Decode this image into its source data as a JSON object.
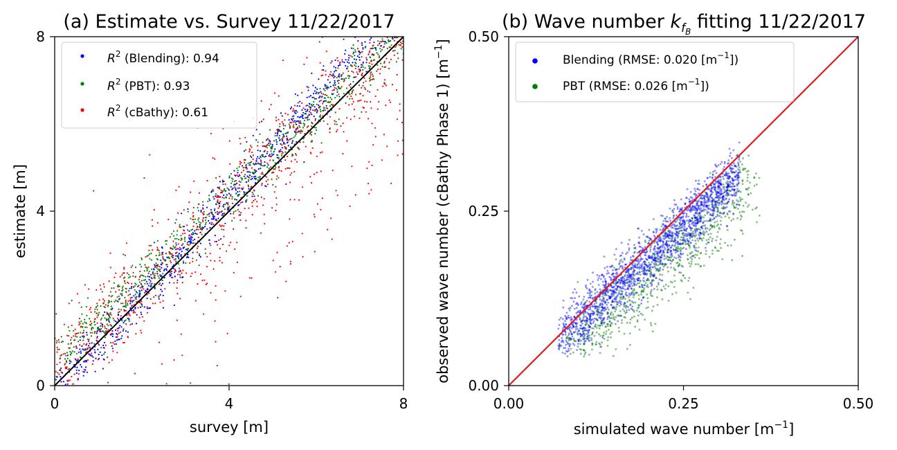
{
  "chart_data": [
    {
      "type": "scatter",
      "title_main": "(a) Estimate vs. Survey 11/22/2017",
      "xlabel": "survey [m]",
      "ylabel": "estimate [m]",
      "xlim": [
        0,
        8
      ],
      "ylim": [
        0,
        8
      ],
      "xticks": [
        "0",
        "4",
        "8"
      ],
      "yticks": [
        "0",
        "4",
        "8"
      ],
      "reference_line": {
        "from": [
          0,
          0
        ],
        "to": [
          8,
          8
        ],
        "color": "#000000"
      },
      "legend_position": "top-left",
      "series": [
        {
          "name": "Blending",
          "label_math": "R",
          "label_sup": "2",
          "label_rest": " (Blending):  0.94",
          "r2": 0.94,
          "color": "#0000ff",
          "slope": 1.12,
          "offset": -0.15,
          "spread": 0.28
        },
        {
          "name": "PBT",
          "label_math": "R",
          "label_sup": "2",
          "label_rest": " (PBT):  0.93",
          "r2": 0.93,
          "color": "#008000",
          "slope": 0.95,
          "offset": 0.55,
          "spread": 0.3
        },
        {
          "name": "cBathy",
          "label_math": "R",
          "label_sup": "2",
          "label_rest": " (cBathy):  0.61",
          "r2": 0.61,
          "color": "#ff0000",
          "slope": 0.97,
          "offset": 0.35,
          "spread": 0.55
        }
      ]
    },
    {
      "type": "scatter",
      "title_main": "(b) Wave number ",
      "title_k": "k",
      "title_sub": "f",
      "title_subsub": "B",
      "title_rest": " fitting 11/22/2017",
      "xlabel_main": "simulated wave number [m",
      "xlabel_sup": "−1",
      "xlabel_end": "]",
      "ylabel_main": "observed wave number (cBathy Phase 1) [m",
      "ylabel_sup": "−1",
      "ylabel_end": "]",
      "xlim": [
        0.0,
        0.5
      ],
      "ylim": [
        0.0,
        0.5
      ],
      "xticks": [
        "0.00",
        "0.25",
        "0.50"
      ],
      "yticks": [
        "0.00",
        "0.25",
        "0.50"
      ],
      "reference_line": {
        "from": [
          0,
          0
        ],
        "to": [
          0.5,
          0.5
        ],
        "color": "#e31a1c"
      },
      "legend_position": "top-left",
      "series": [
        {
          "name": "Blending",
          "label_main": "Blending (RMSE:   0.020 [m",
          "label_sup": "−1",
          "label_end": "])",
          "rmse": 0.02,
          "color": "#0000ff"
        },
        {
          "name": "PBT",
          "label_main": "PBT (RMSE:   0.026 [m",
          "label_sup": "−1",
          "label_end": "])",
          "rmse": 0.026,
          "color": "#008000"
        }
      ]
    }
  ],
  "colors": {
    "blue": "#0000ff",
    "green": "#008000",
    "red": "#ff0000",
    "refline_b": "#e31a1c"
  }
}
